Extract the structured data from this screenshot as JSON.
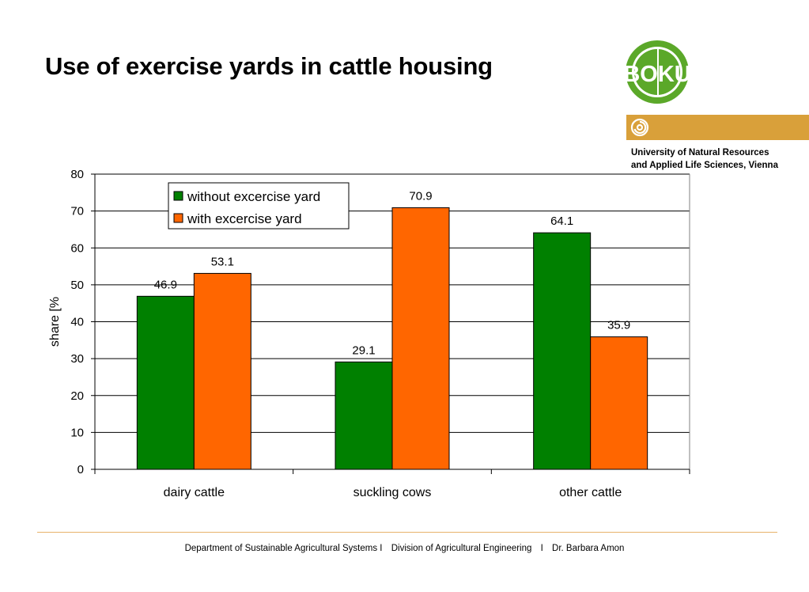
{
  "slide": {
    "title": "Use of exercise yards in cattle housing",
    "university_line1": "University of Natural Resources",
    "university_line2": "and Applied Life Sciences, Vienna",
    "logo_text": "BOKU",
    "footer_dept": "Department of Sustainable Agricultural Systems I",
    "footer_div": "Division of Agricultural Engineering",
    "footer_sep": "I",
    "footer_author": "Dr. Barbara Amon"
  },
  "colors": {
    "accent_orange": "#D9A03A",
    "logo_green": "#5BA829",
    "footer_line": "#E8B36A",
    "series_green": "#008000",
    "series_orange": "#FF6600"
  },
  "chart_data": {
    "type": "bar",
    "title": "",
    "xlabel": "",
    "ylabel": "share [%",
    "ylim": [
      0,
      80
    ],
    "yticks": [
      0,
      10,
      20,
      30,
      40,
      50,
      60,
      70,
      80
    ],
    "categories": [
      "dairy cattle",
      "suckling cows",
      "other cattle"
    ],
    "series": [
      {
        "name": "without excercise yard",
        "values": [
          46.9,
          29.1,
          64.1
        ],
        "color": "#008000"
      },
      {
        "name": "with excercise yard",
        "values": [
          53.1,
          70.9,
          35.9
        ],
        "color": "#FF6600"
      }
    ],
    "grid": true,
    "legend_position": "top-left"
  }
}
